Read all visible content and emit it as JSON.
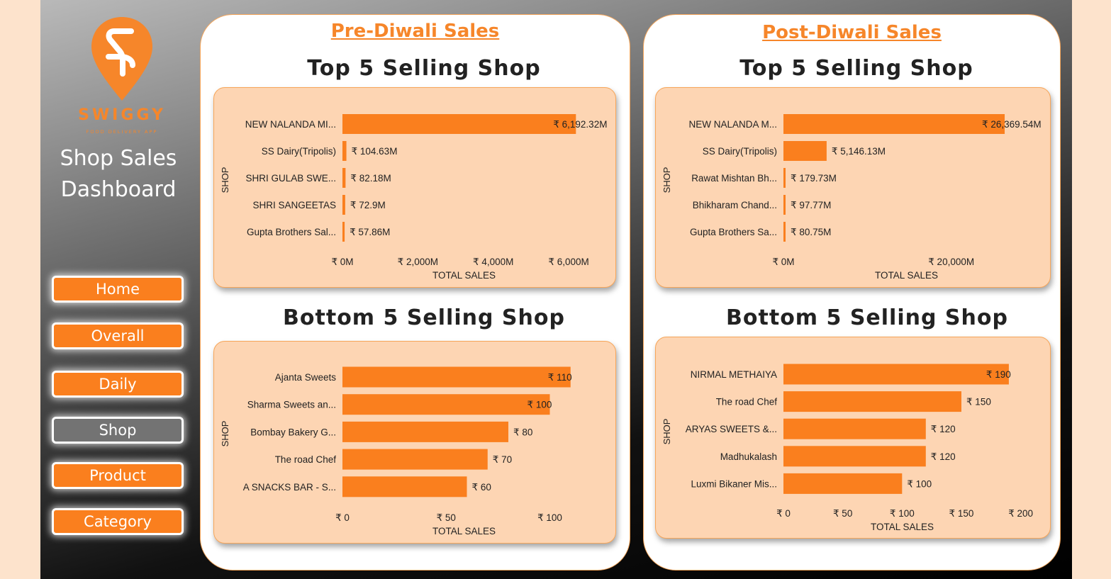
{
  "sidebar": {
    "brand": "SWIGGY",
    "brand_sub": "FOOD DELIVERY APP",
    "title_line1": "Shop Sales",
    "title_line2": "Dashboard",
    "nav": [
      "Home",
      "Overall",
      "Daily",
      "Shop",
      "Product",
      "Category"
    ],
    "active": "Shop"
  },
  "colors": {
    "accent": "#fa7f1e",
    "chart_bg": "#fdd5b3",
    "active_nav": "#737373"
  },
  "panels": {
    "pre": {
      "title": "Pre-Diwali Sales"
    },
    "post": {
      "title": "Post-Diwali Sales"
    }
  },
  "chart_data": [
    {
      "id": "pre_top",
      "type": "bar",
      "orientation": "horizontal",
      "title": "Top 5 Selling Shop",
      "xlabel": "TOTAL SALES",
      "ylabel": "SHOP",
      "categories": [
        "NEW NALANDA MI...",
        "SS Dairy(Tripolis)",
        "SHRI GULAB SWE...",
        "SHRI SANGEETAS",
        "Gupta Brothers Sal..."
      ],
      "values": [
        6192.32,
        104.63,
        82.18,
        72.9,
        57.86
      ],
      "value_labels": [
        "₹ 6,192.32M",
        "₹ 104.63M",
        "₹ 82.18M",
        "₹ 72.9M",
        "₹ 57.86M"
      ],
      "xlim": [
        0,
        6600
      ],
      "ticks": [
        0,
        2000,
        4000,
        6000
      ],
      "tick_labels": [
        "₹ 0M",
        "₹ 2,000M",
        "₹ 4,000M",
        "₹ 6,000M"
      ]
    },
    {
      "id": "pre_bottom",
      "type": "bar",
      "orientation": "horizontal",
      "title": "Bottom 5 Selling Shop",
      "xlabel": "TOTAL SALES",
      "ylabel": "SHOP",
      "categories": [
        "Ajanta Sweets",
        "Sharma Sweets an...",
        "Bombay Bakery G...",
        "The road Chef",
        "A SNACKS BAR - S..."
      ],
      "values": [
        110,
        100,
        80,
        70,
        60
      ],
      "value_labels": [
        "₹ 110",
        "₹ 100",
        "₹ 80",
        "₹ 70",
        "₹ 60"
      ],
      "xlim": [
        0,
        120
      ],
      "ticks": [
        0,
        50,
        100
      ],
      "tick_labels": [
        "₹ 0",
        "₹ 50",
        "₹ 100"
      ]
    },
    {
      "id": "post_top",
      "type": "bar",
      "orientation": "horizontal",
      "title": "Top 5 Selling Shop",
      "xlabel": "TOTAL SALES",
      "ylabel": "SHOP",
      "categories": [
        "NEW NALANDA M...",
        "SS Dairy(Tripolis)",
        "Rawat Mishtan Bh...",
        "Bhikharam Chand...",
        "Gupta Brothers Sa..."
      ],
      "values": [
        26369.54,
        5146.13,
        179.73,
        97.77,
        80.75
      ],
      "value_labels": [
        "₹ 26,369.54M",
        "₹ 5,146.13M",
        "₹ 179.73M",
        "₹ 97.77M",
        "₹ 80.75M"
      ],
      "xlim": [
        0,
        30000
      ],
      "ticks": [
        0,
        20000
      ],
      "tick_labels": [
        "₹ 0M",
        "₹ 20,000M"
      ]
    },
    {
      "id": "post_bottom",
      "type": "bar",
      "orientation": "horizontal",
      "title": "Bottom 5 Selling Shop",
      "xlabel": "TOTAL SALES",
      "ylabel": "SHOP",
      "categories": [
        "NIRMAL METHAIYA",
        "The road Chef",
        "ARYAS SWEETS &...",
        "Madhukalash",
        "Luxmi Bikaner Mis..."
      ],
      "values": [
        190,
        150,
        120,
        120,
        100
      ],
      "value_labels": [
        "₹ 190",
        "₹ 150",
        "₹ 120",
        "₹ 120",
        "₹ 100"
      ],
      "xlim": [
        0,
        205
      ],
      "ticks": [
        0,
        50,
        100,
        150,
        200
      ],
      "tick_labels": [
        "₹ 0",
        "₹ 50",
        "₹ 100",
        "₹ 150",
        "₹ 200"
      ]
    }
  ]
}
